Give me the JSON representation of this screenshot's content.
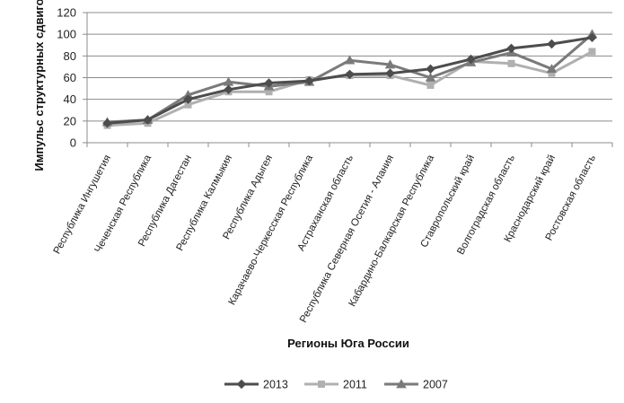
{
  "chart_data": {
    "type": "line",
    "title": "",
    "xlabel": "Регионы Юга России",
    "ylabel": "Импульс структурных сдвигов",
    "ylim": [
      0,
      120
    ],
    "yticks": [
      0,
      20,
      40,
      60,
      80,
      100,
      120
    ],
    "grid": true,
    "legend_position": "bottom",
    "categories": [
      "Республика Ингушетия",
      "Чеченская Республика",
      "Республика Дагестан",
      "Республика Калмыкия",
      "Республика Адыгея",
      "Карачаево-Черкесская Республика",
      "Астраханская область",
      "Республика Северная Осетия - Алания",
      "Кабардино-Балкарская Республика",
      "Ставропольский край",
      "Волгоградская область",
      "Краснодарский край",
      "Ростовская область"
    ],
    "series": [
      {
        "name": "2013",
        "marker": "diamond",
        "color": "#4d4d4d",
        "values": [
          18,
          21,
          40,
          49,
          55,
          57,
          63,
          64,
          68,
          77,
          87,
          91,
          97
        ]
      },
      {
        "name": "2011",
        "marker": "square",
        "color": "#b0b0b0",
        "values": [
          16,
          18,
          35,
          47,
          47,
          58,
          62,
          62,
          53,
          75,
          73,
          64,
          84
        ]
      },
      {
        "name": "2007",
        "marker": "triangle",
        "color": "#7a7a7a",
        "values": [
          19,
          21,
          44,
          56,
          52,
          56,
          76,
          72,
          60,
          74,
          83,
          68,
          100
        ]
      }
    ]
  }
}
